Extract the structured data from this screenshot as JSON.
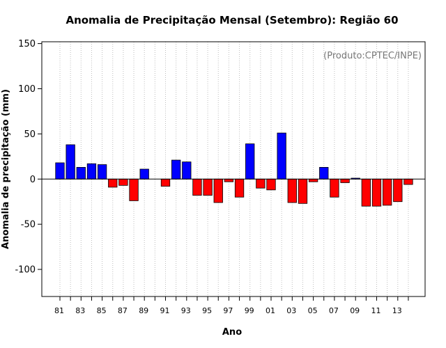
{
  "chart_data": {
    "type": "bar",
    "title": "Anomalia de Precipitação Mensal (Setembro): Região 60",
    "xlabel": "Ano",
    "ylabel": "Anomalia de precipitação (mm)",
    "annotation": "(Produto:CPTEC/INPE)",
    "ylim": [
      -130,
      152
    ],
    "yticks": [
      -100,
      -50,
      0,
      50,
      100,
      150
    ],
    "grid": "vertical dotted",
    "zero_line": true,
    "positive_color": "#0000ff",
    "negative_color": "#ff0000",
    "x_tick_labels": [
      "81",
      "83",
      "85",
      "87",
      "89",
      "91",
      "93",
      "95",
      "97",
      "99",
      "01",
      "03",
      "05",
      "07",
      "09",
      "11",
      "13"
    ],
    "categories": [
      "1981",
      "1982",
      "1983",
      "1984",
      "1985",
      "1986",
      "1987",
      "1988",
      "1989",
      "1990",
      "1991",
      "1992",
      "1993",
      "1994",
      "1995",
      "1996",
      "1997",
      "1998",
      "1999",
      "2000",
      "2001",
      "2002",
      "2003",
      "2004",
      "2005",
      "2006",
      "2007",
      "2008",
      "2009",
      "2010",
      "2011",
      "2012",
      "2013",
      "2014"
    ],
    "values": [
      18,
      38,
      13,
      17,
      16,
      -9,
      -7,
      -24,
      11,
      0,
      -8,
      21,
      19,
      -18,
      -18,
      -26,
      -3,
      -20,
      39,
      -10,
      -12,
      51,
      -26,
      -27,
      -3,
      13,
      -20,
      -4,
      1,
      -30,
      -30,
      -29,
      -25,
      -6
    ]
  }
}
